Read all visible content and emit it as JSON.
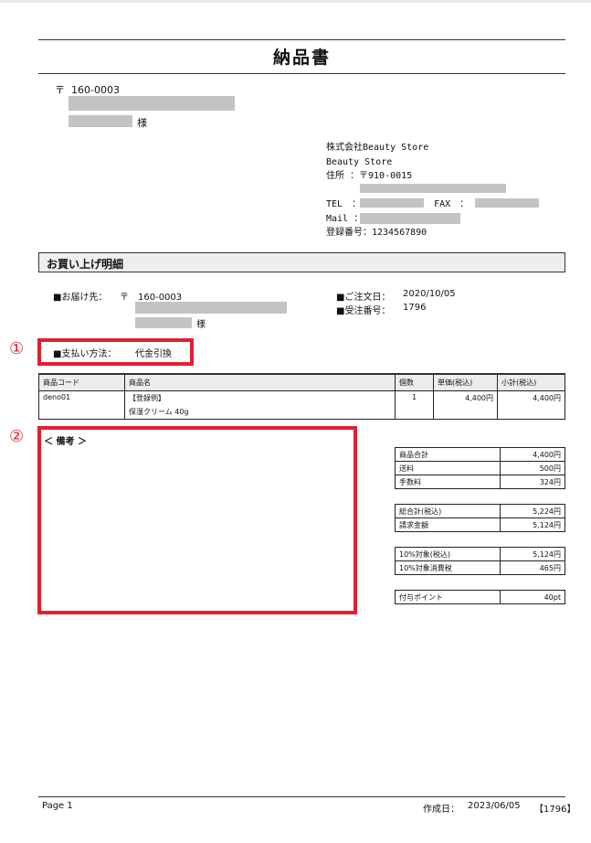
{
  "title": "納品書",
  "recipient": {
    "postal_mark": "〒",
    "postal": "160-0003",
    "honorific": "様"
  },
  "sender": {
    "company": "株式会社Beauty Store",
    "shop": "Beauty Store",
    "address_label": "住所 ：〒910-0015",
    "tel_label": "TEL　：",
    "fax_label": "FAX　：",
    "mail_label": "Mail ：",
    "reg_label": "登録番号：1234567890"
  },
  "section_title": "お買い上げ明細",
  "delivery": {
    "label": "■お届け先：",
    "postal": "〒　160-0003",
    "honorific": "様"
  },
  "order": {
    "date_label": "■ご注文日：",
    "date": "2020/10/05",
    "no_label": "■受注番号：",
    "no": "1796"
  },
  "payment": {
    "label": "■支払い方法：",
    "value": "代金引換"
  },
  "annotations": {
    "one": "①",
    "two": "②"
  },
  "items": {
    "headers": [
      "商品コード",
      "商品名",
      "個数",
      "単価(税込)",
      "小計(税込)"
    ],
    "rows": [
      {
        "code": "deno01",
        "name1": "【登録例】",
        "name2": "保湿クリーム 40g",
        "qty": "1",
        "price": "4,400円",
        "subtotal": "4,400円"
      }
    ]
  },
  "remarks_label": "＜ 備考 ＞",
  "summary": [
    [
      {
        "k": "商品合計",
        "v": "4,400円"
      },
      {
        "k": "送料",
        "v": "500円"
      },
      {
        "k": "手数料",
        "v": "324円"
      }
    ],
    [
      {
        "k": "総合計(税込)",
        "v": "5,224円"
      },
      {
        "k": "請求金額",
        "v": "5,124円"
      }
    ],
    [
      {
        "k": "10%対象(税込)",
        "v": "5,124円"
      },
      {
        "k": "10%対象消費税",
        "v": "465円"
      }
    ],
    [
      {
        "k": "付与ポイント",
        "v": "40pt"
      }
    ]
  ],
  "footer": {
    "page": "Page 1",
    "created_label": "作成日：",
    "created": "2023/06/05",
    "order_ref": "【1796】"
  },
  "colors": {
    "highlight": "#e02030"
  }
}
